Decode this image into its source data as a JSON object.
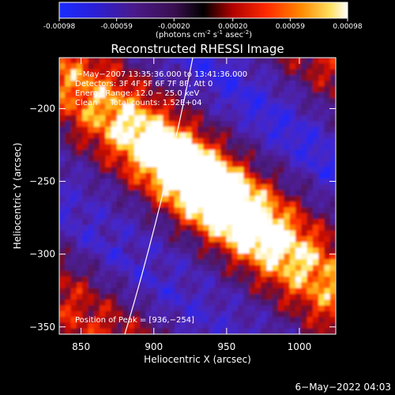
{
  "colorbar": {
    "tick_labels": [
      "-0.00098",
      "-0.00059",
      "-0.00020",
      "0.00020",
      "0.00059",
      "0.00098"
    ],
    "unit_label": "(photons cm-2 s-1 asec-2)",
    "unit_parts": {
      "a": "(photons cm",
      "sup1": "-2",
      "b": " s",
      "sup2": "-1",
      "c": " asec",
      "sup3": "-2",
      "d": ")"
    },
    "range": [
      -0.00098,
      0.00098
    ]
  },
  "chart_data": {
    "type": "heatmap",
    "title": "Reconstructed RHESSI Image",
    "xlabel": "Heliocentric X (arcsec)",
    "ylabel": "Heliocentric Y (arcsec)",
    "xlim": [
      835,
      1025
    ],
    "ylim": [
      -355,
      -165
    ],
    "x_ticks": [
      850,
      900,
      950,
      1000
    ],
    "y_ticks": [
      -200,
      -250,
      -300,
      -350
    ],
    "x_tick_labels": [
      "850",
      "900",
      "950",
      "1000"
    ],
    "y_tick_labels": [
      "−200",
      "−250",
      "−300",
      "−350"
    ],
    "annotations": [
      "9−May−2007 13:35:36.000 to 13:41:36.000",
      "Detectors: 3F 4F 5F 6F 7F 8F, Att 0",
      "Energy Range: 12.0 − 25.0 keV",
      "Clean     Total counts: 1.52E+04"
    ],
    "peak_label": "Position of Peak = [936,−254]",
    "peak": [
      936,
      -254
    ],
    "colormap": "blue-purple-red-yellow-white"
  },
  "footer": {
    "timestamp": "6−May−2022 04:03"
  }
}
